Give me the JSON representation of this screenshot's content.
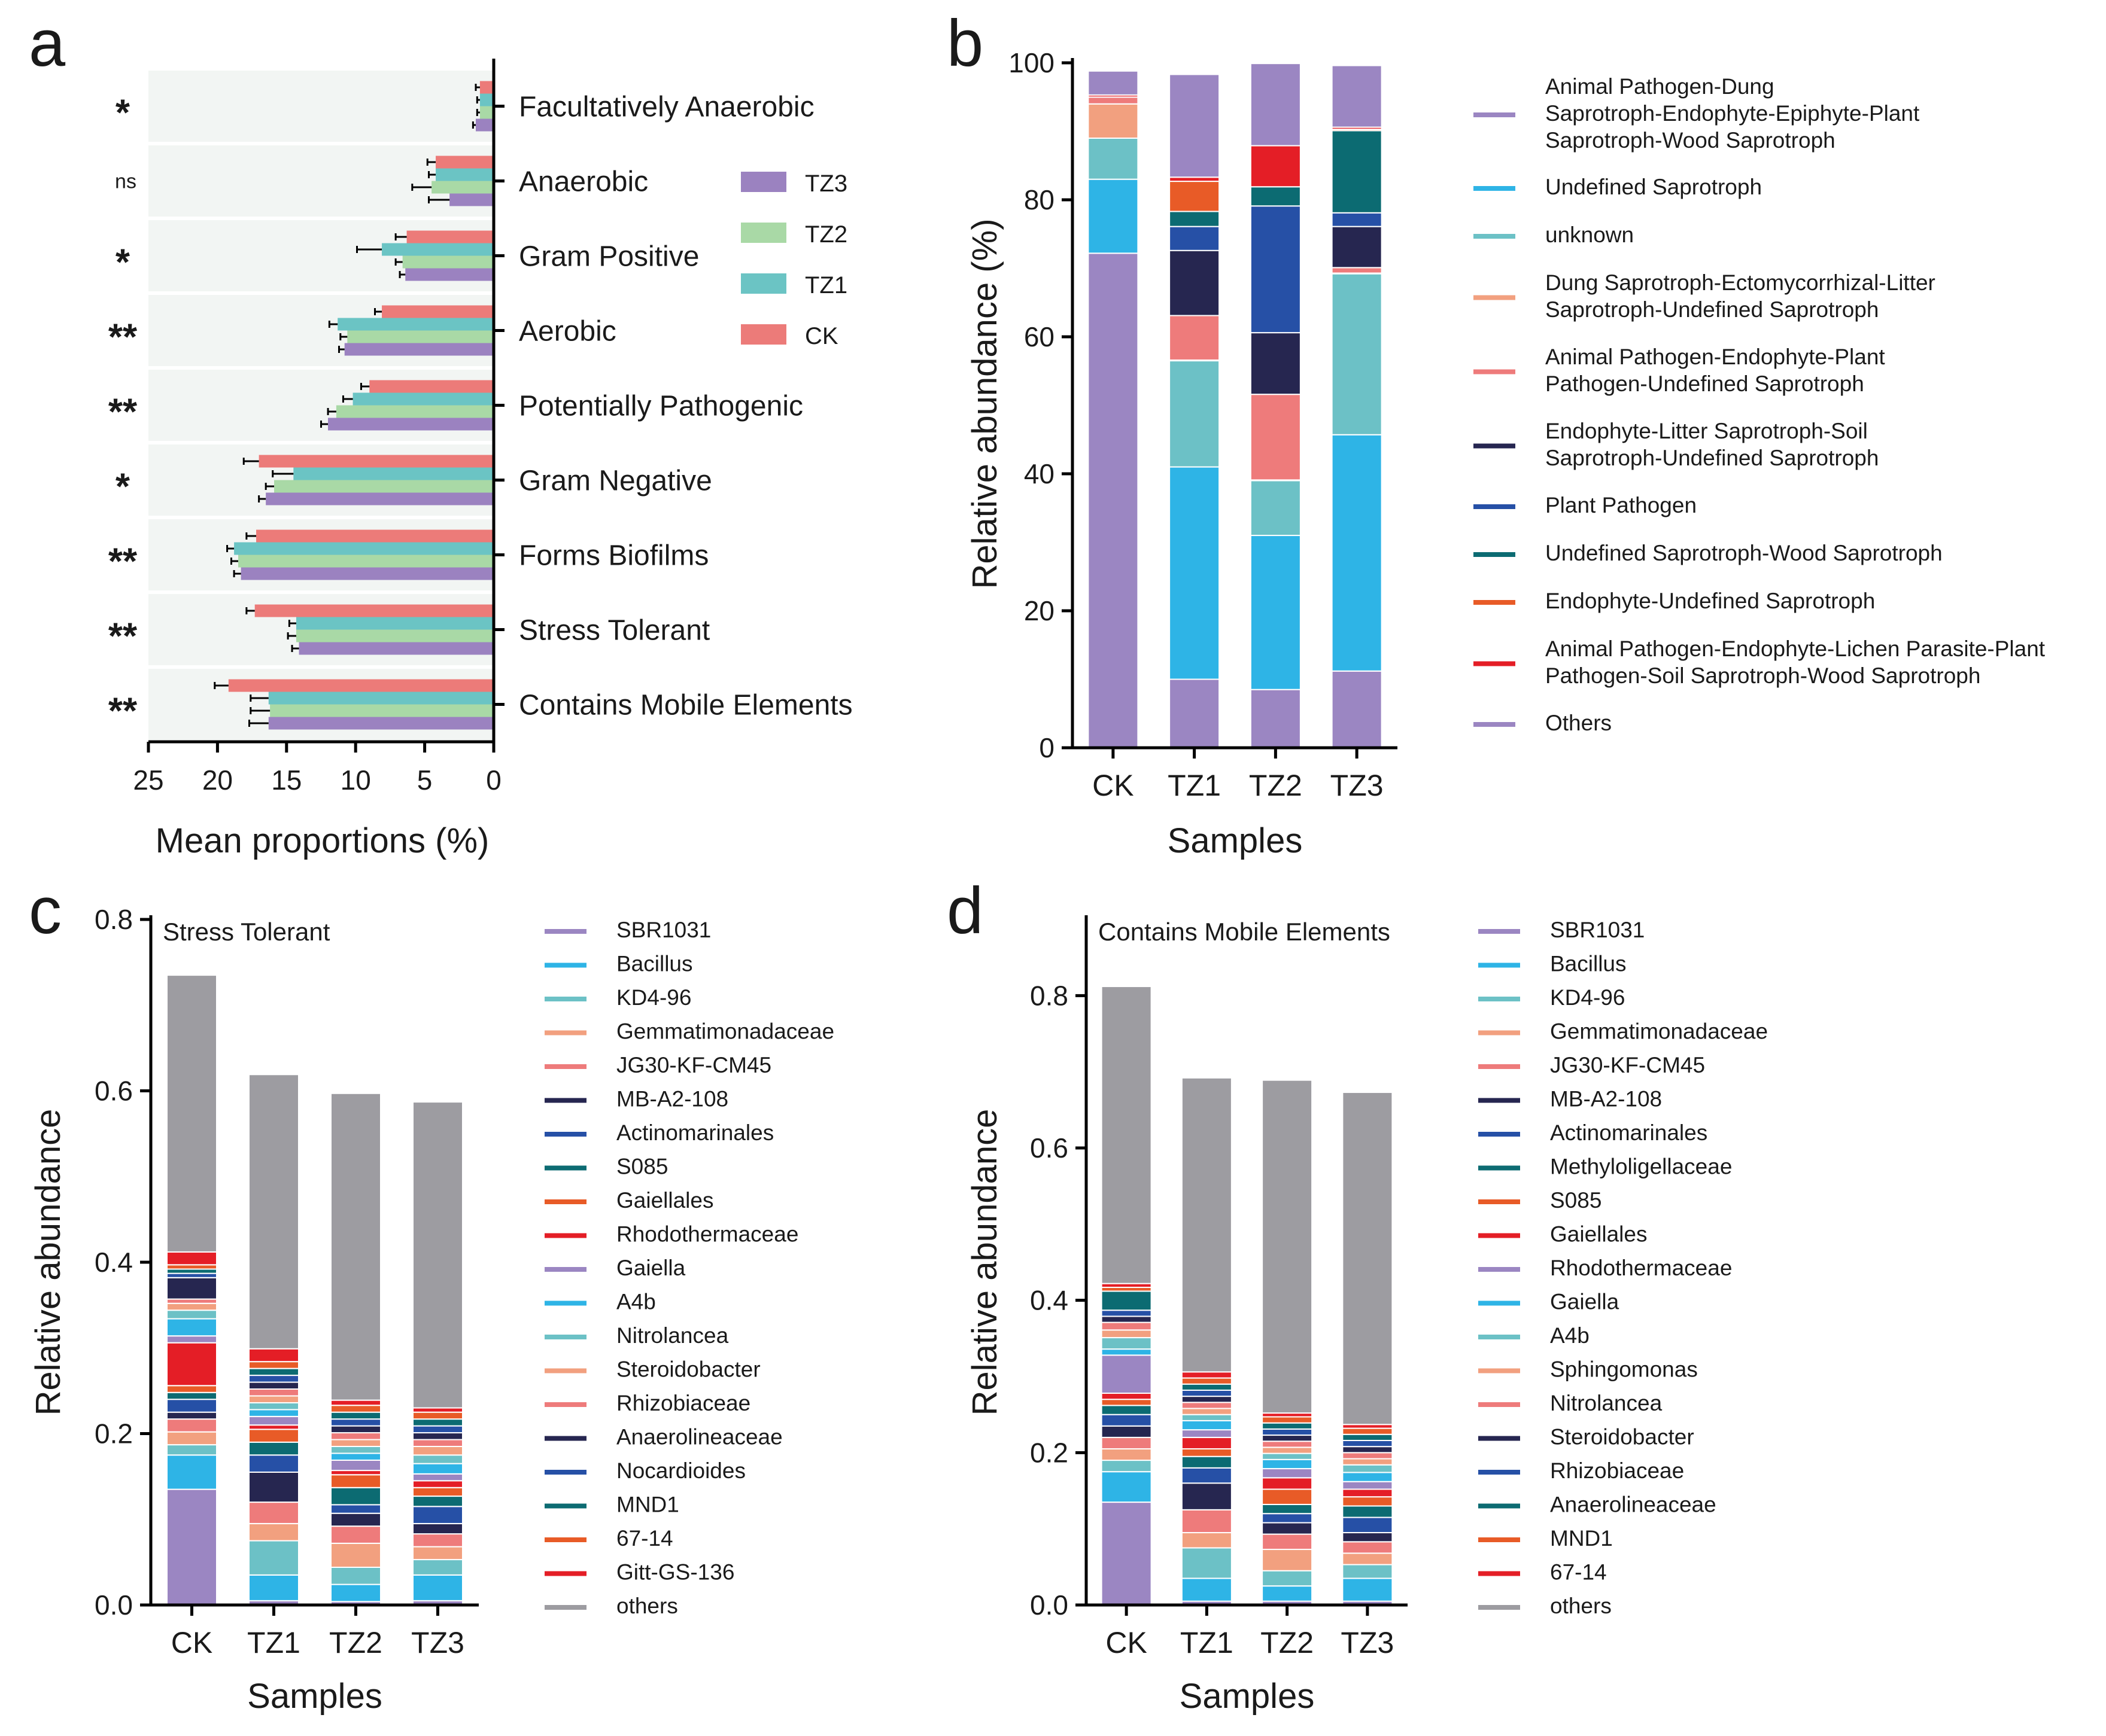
{
  "chart_data": [
    {
      "panel": "a",
      "type": "bar",
      "orientation": "horizontal",
      "xlabel": "Mean proportions (%)",
      "xlim": [
        25,
        0
      ],
      "xticks": [
        "25",
        "20",
        "15",
        "10",
        "5",
        "0"
      ],
      "legend": [
        "TZ3",
        "TZ2",
        "TZ1",
        "CK"
      ],
      "colors": {
        "CK": "#ec7b79",
        "TZ1": "#6bc4c4",
        "TZ2": "#a9d9a6",
        "TZ3": "#9b82c0"
      },
      "categories": [
        "Facultatively Anaerobic",
        "Anaerobic",
        "Gram Positive",
        "Aerobic",
        "Potentially Pathogenic",
        "Gram Negative",
        "Forms Biofilms",
        "Stress Tolerant",
        "Contains Mobile Elements"
      ],
      "significance": [
        "*",
        "ns",
        "*",
        "**",
        "**",
        "*",
        "**",
        "**",
        "**"
      ],
      "series": [
        {
          "name": "CK",
          "values": [
            1.0,
            4.2,
            6.3,
            8.1,
            9.0,
            17.0,
            17.2,
            17.3,
            19.2
          ],
          "errors": [
            0.3,
            0.6,
            0.8,
            0.5,
            0.6,
            1.1,
            0.7,
            0.6,
            1.0
          ]
        },
        {
          "name": "TZ1",
          "values": [
            1.0,
            4.2,
            8.1,
            11.3,
            10.2,
            14.5,
            18.8,
            14.3,
            16.3
          ],
          "errors": [
            0.2,
            0.5,
            1.8,
            0.6,
            0.7,
            1.5,
            0.5,
            0.5,
            1.3
          ]
        },
        {
          "name": "TZ2",
          "values": [
            1.0,
            4.5,
            6.6,
            10.6,
            11.4,
            15.9,
            18.5,
            14.3,
            16.2
          ],
          "errors": [
            0.2,
            1.4,
            0.5,
            0.5,
            0.6,
            0.6,
            0.5,
            0.6,
            1.4
          ]
        },
        {
          "name": "TZ3",
          "values": [
            1.3,
            3.2,
            6.4,
            10.8,
            12.0,
            16.5,
            18.3,
            14.1,
            16.3
          ],
          "errors": [
            0.2,
            1.5,
            0.4,
            0.4,
            0.5,
            0.5,
            0.5,
            0.5,
            1.4
          ]
        }
      ]
    },
    {
      "panel": "b",
      "type": "bar",
      "stacked": true,
      "xlabel": "Samples",
      "ylabel": "Relative abundance (%)",
      "ylim": [
        0,
        100
      ],
      "yticks": [
        "0",
        "20",
        "40",
        "60",
        "80",
        "100"
      ],
      "categories": [
        "CK",
        "TZ1",
        "TZ2",
        "TZ3"
      ],
      "series": [
        {
          "name": "Animal Pathogen-Dung Saprotroph-Endophyte-Epiphyte-Plant Saprotroph-Wood Saprotroph",
          "label_lines": [
            "Animal Pathogen-Dung",
            "Saprotroph-Endophyte-Epiphyte-Plant",
            "Saprotroph-Wood Saprotroph"
          ],
          "color": "#9b86c2",
          "values": [
            72.2,
            10.0,
            8.5,
            11.2
          ]
        },
        {
          "name": "Undefined Saprotroph",
          "label_lines": [
            "Undefined Saprotroph"
          ],
          "color": "#2eb4e6",
          "values": [
            10.8,
            31.0,
            22.5,
            34.5
          ]
        },
        {
          "name": "unknown",
          "label_lines": [
            "unknown"
          ],
          "color": "#6cc1c6",
          "values": [
            6.0,
            15.5,
            8.0,
            23.5
          ]
        },
        {
          "name": "Dung Saprotroph-Ectomycorrhizal-Litter Saprotroph-Undefined Saprotroph",
          "label_lines": [
            "Dung Saprotroph-Ectomycorrhizal-Litter",
            "Saprotroph-Undefined Saprotroph"
          ],
          "color": "#f2a07f",
          "values": [
            5.0,
            0.1,
            0.1,
            0.1
          ]
        },
        {
          "name": "Animal Pathogen-Endophyte-Plant Pathogen-Undefined Saprotroph",
          "label_lines": [
            "Animal Pathogen-Endophyte-Plant",
            "Pathogen-Undefined Saprotroph"
          ],
          "color": "#ee7b7b",
          "values": [
            1.0,
            6.5,
            12.5,
            0.8
          ]
        },
        {
          "name": "Endophyte-Litter Saprotroph-Soil Saprotroph-Undefined Saprotroph",
          "label_lines": [
            "Endophyte-Litter Saprotroph-Soil",
            "Saprotroph-Undefined Saprotroph"
          ],
          "color": "#262650",
          "values": [
            0.0,
            9.5,
            9.0,
            6.0
          ]
        },
        {
          "name": "Plant Pathogen",
          "label_lines": [
            "Plant Pathogen"
          ],
          "color": "#2650a6",
          "values": [
            0.0,
            3.5,
            18.5,
            2.0
          ]
        },
        {
          "name": "Undefined Saprotroph-Wood Saprotroph",
          "label_lines": [
            "Undefined Saprotroph-Wood Saprotroph"
          ],
          "color": "#0c6b72",
          "values": [
            0.0,
            2.2,
            2.8,
            12.0
          ]
        },
        {
          "name": "Endophyte-Undefined Saprotroph",
          "label_lines": [
            "Endophyte-Undefined Saprotroph"
          ],
          "color": "#e85b27",
          "values": [
            0.0,
            4.4,
            0.0,
            0.2
          ]
        },
        {
          "name": "Animal Pathogen-Endophyte-Lichen Parasite-Plant Pathogen-Soil Saprotroph-Wood Saprotroph",
          "label_lines": [
            "Animal Pathogen-Endophyte-Lichen Parasite-Plant",
            "Pathogen-Soil Saprotroph-Wood Saprotroph"
          ],
          "color": "#e41e26",
          "values": [
            0.3,
            0.6,
            6.0,
            0.3
          ]
        },
        {
          "name": "Others",
          "label_lines": [
            "Others"
          ],
          "color": "#9b86c2",
          "values": [
            3.5,
            15.0,
            12.0,
            9.0
          ]
        }
      ]
    },
    {
      "panel": "c",
      "type": "bar",
      "stacked": true,
      "title": "Stress Tolerant",
      "xlabel": "Samples",
      "ylabel": "Relative abundance",
      "ylim": [
        0,
        0.8
      ],
      "yticks": [
        "0.0",
        "0.2",
        "0.4",
        "0.6",
        "0.8"
      ],
      "categories": [
        "CK",
        "TZ1",
        "TZ2",
        "TZ3"
      ],
      "series": [
        {
          "name": "SBR1031",
          "color": "#9b86c2",
          "values": [
            0.135,
            0.005,
            0.004,
            0.005
          ]
        },
        {
          "name": "Bacillus",
          "color": "#2eb4e6",
          "values": [
            0.04,
            0.03,
            0.02,
            0.03
          ]
        },
        {
          "name": "KD4-96",
          "color": "#6cc1c6",
          "values": [
            0.012,
            0.04,
            0.02,
            0.018
          ]
        },
        {
          "name": "Gemmatimonadaceae",
          "color": "#f2a07f",
          "values": [
            0.015,
            0.02,
            0.028,
            0.015
          ]
        },
        {
          "name": "JG30-KF-CM45",
          "color": "#ee7b7b",
          "values": [
            0.015,
            0.025,
            0.02,
            0.015
          ]
        },
        {
          "name": "MB-A2-108",
          "color": "#262650",
          "values": [
            0.008,
            0.035,
            0.015,
            0.012
          ]
        },
        {
          "name": "Actinomarinales",
          "color": "#2650a6",
          "values": [
            0.015,
            0.02,
            0.01,
            0.02
          ]
        },
        {
          "name": "S085",
          "color": "#0c6b72",
          "values": [
            0.008,
            0.015,
            0.02,
            0.012
          ]
        },
        {
          "name": "Gaiellales",
          "color": "#e85b27",
          "values": [
            0.008,
            0.015,
            0.015,
            0.01
          ]
        },
        {
          "name": "Rhodothermaceae",
          "color": "#e41e26",
          "values": [
            0.05,
            0.005,
            0.005,
            0.008
          ]
        },
        {
          "name": "Gaiella",
          "color": "#9b86c2",
          "values": [
            0.008,
            0.01,
            0.012,
            0.008
          ]
        },
        {
          "name": "A4b",
          "color": "#2eb4e6",
          "values": [
            0.02,
            0.008,
            0.008,
            0.012
          ]
        },
        {
          "name": "Nitrolancea",
          "color": "#6cc1c6",
          "values": [
            0.01,
            0.008,
            0.008,
            0.01
          ]
        },
        {
          "name": "Steroidobacter",
          "color": "#f2a07f",
          "values": [
            0.008,
            0.008,
            0.008,
            0.01
          ]
        },
        {
          "name": "Rhizobiaceae",
          "color": "#ee7b7b",
          "values": [
            0.005,
            0.008,
            0.008,
            0.008
          ]
        },
        {
          "name": "Anaerolineaceae",
          "color": "#262650",
          "values": [
            0.025,
            0.008,
            0.008,
            0.008
          ]
        },
        {
          "name": "Nocardioides",
          "color": "#2650a6",
          "values": [
            0.005,
            0.008,
            0.008,
            0.008
          ]
        },
        {
          "name": "MND1",
          "color": "#0c6b72",
          "values": [
            0.005,
            0.008,
            0.008,
            0.008
          ]
        },
        {
          "name": "67-14",
          "color": "#e85b27",
          "values": [
            0.005,
            0.008,
            0.008,
            0.008
          ]
        },
        {
          "name": "Gitt-GS-136",
          "color": "#e41e26",
          "values": [
            0.015,
            0.015,
            0.006,
            0.005
          ]
        },
        {
          "name": "others",
          "color": "#9d9ca1",
          "values": [
            0.323,
            0.32,
            0.358,
            0.357
          ]
        }
      ]
    },
    {
      "panel": "d",
      "type": "bar",
      "stacked": true,
      "title": "Contains Mobile Elements",
      "xlabel": "Samples",
      "ylabel": "Relative abundance",
      "ylim": [
        0,
        0.9
      ],
      "yticks": [
        "0.0",
        "0.2",
        "0.4",
        "0.6",
        "0.8"
      ],
      "categories": [
        "CK",
        "TZ1",
        "TZ2",
        "TZ3"
      ],
      "series": [
        {
          "name": "SBR1031",
          "color": "#9b86c2",
          "values": [
            0.135,
            0.005,
            0.005,
            0.005
          ]
        },
        {
          "name": "Bacillus",
          "color": "#2eb4e6",
          "values": [
            0.04,
            0.03,
            0.02,
            0.03
          ]
        },
        {
          "name": "KD4-96",
          "color": "#6cc1c6",
          "values": [
            0.015,
            0.04,
            0.02,
            0.018
          ]
        },
        {
          "name": "Gemmatimonadaceae",
          "color": "#f2a07f",
          "values": [
            0.015,
            0.02,
            0.028,
            0.015
          ]
        },
        {
          "name": "JG30-KF-CM45",
          "color": "#ee7b7b",
          "values": [
            0.015,
            0.03,
            0.02,
            0.015
          ]
        },
        {
          "name": "MB-A2-108",
          "color": "#262650",
          "values": [
            0.015,
            0.035,
            0.015,
            0.012
          ]
        },
        {
          "name": "Actinomarinales",
          "color": "#2650a6",
          "values": [
            0.015,
            0.02,
            0.012,
            0.02
          ]
        },
        {
          "name": "Methyloligellaceae",
          "color": "#0c6b72",
          "values": [
            0.012,
            0.015,
            0.012,
            0.015
          ]
        },
        {
          "name": "S085",
          "color": "#e85b27",
          "values": [
            0.008,
            0.01,
            0.02,
            0.012
          ]
        },
        {
          "name": "Gaiellales",
          "color": "#e41e26",
          "values": [
            0.008,
            0.015,
            0.015,
            0.01
          ]
        },
        {
          "name": "Rhodothermaceae",
          "color": "#9b86c2",
          "values": [
            0.05,
            0.01,
            0.012,
            0.01
          ]
        },
        {
          "name": "Gaiella",
          "color": "#2eb4e6",
          "values": [
            0.008,
            0.012,
            0.012,
            0.012
          ]
        },
        {
          "name": "A4b",
          "color": "#6cc1c6",
          "values": [
            0.015,
            0.008,
            0.008,
            0.01
          ]
        },
        {
          "name": "Sphingomonas",
          "color": "#f2a07f",
          "values": [
            0.01,
            0.008,
            0.008,
            0.008
          ]
        },
        {
          "name": "Nitrolancea",
          "color": "#ee7b7b",
          "values": [
            0.01,
            0.008,
            0.008,
            0.008
          ]
        },
        {
          "name": "Steroidobacter",
          "color": "#262650",
          "values": [
            0.008,
            0.008,
            0.008,
            0.008
          ]
        },
        {
          "name": "Rhizobiaceae",
          "color": "#2650a6",
          "values": [
            0.008,
            0.008,
            0.008,
            0.008
          ]
        },
        {
          "name": "Anaerolineaceae",
          "color": "#0c6b72",
          "values": [
            0.025,
            0.008,
            0.008,
            0.008
          ]
        },
        {
          "name": "MND1",
          "color": "#e85b27",
          "values": [
            0.005,
            0.008,
            0.008,
            0.008
          ]
        },
        {
          "name": "67-14",
          "color": "#e41e26",
          "values": [
            0.005,
            0.008,
            0.005,
            0.005
          ]
        },
        {
          "name": "others",
          "color": "#9d9ca1",
          "values": [
            0.39,
            0.386,
            0.437,
            0.436
          ]
        }
      ]
    }
  ],
  "panel_labels": [
    "a",
    "b",
    "c",
    "d"
  ]
}
